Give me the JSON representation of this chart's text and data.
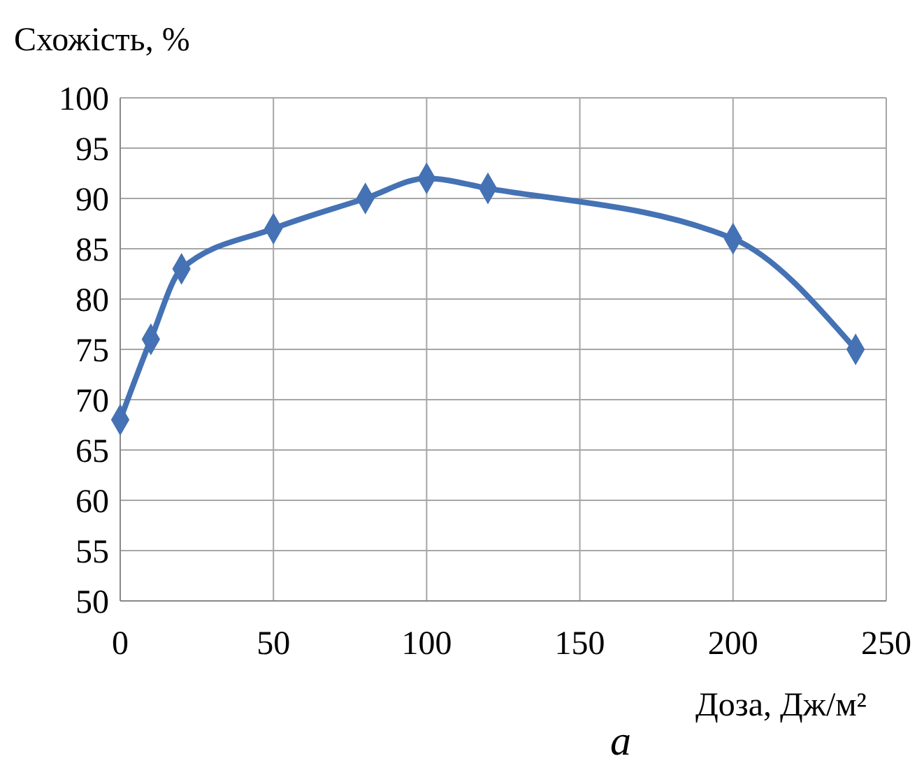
{
  "chart_data": {
    "type": "line",
    "ylabel": "Схожість, %",
    "xlabel": "Доза, Дж/м²",
    "annotations": [
      "a"
    ],
    "x": [
      0,
      10,
      20,
      50,
      80,
      100,
      120,
      200,
      240
    ],
    "series": [
      {
        "color": "#4472b4",
        "values": [
          68,
          76,
          83,
          87,
          90,
          92,
          91,
          86,
          75
        ]
      }
    ],
    "xlim": [
      0,
      250
    ],
    "xticks": [
      0,
      50,
      100,
      150,
      200,
      250
    ],
    "ylim": [
      50,
      100
    ],
    "yticks": [
      50,
      55,
      60,
      65,
      70,
      75,
      80,
      85,
      90,
      95,
      100
    ],
    "grid": true,
    "marker": "diamond",
    "line_style": "solid"
  }
}
